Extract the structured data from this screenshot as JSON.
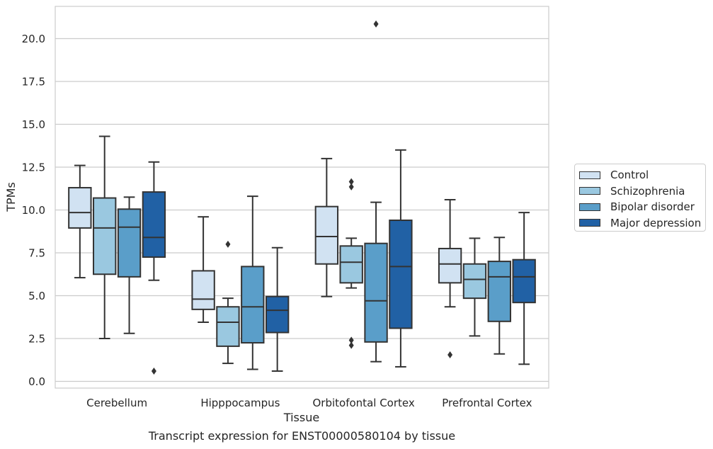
{
  "chart_data": {
    "type": "box",
    "xlabel": "Tissue",
    "ylabel": "TPMs",
    "ylim": [
      -0.4,
      21.8
    ],
    "yticks": [
      "0.0",
      "2.5",
      "5.0",
      "7.5",
      "10.0",
      "12.5",
      "15.0",
      "17.5",
      "20.0"
    ],
    "grid": "horizontal",
    "legend_position": "right",
    "categories": [
      "Cerebellum",
      "Hipppocampus",
      "Orbitofontal Cortex",
      "Prefrontal Cortex"
    ],
    "series": [
      {
        "name": "Control",
        "color": "#d1e2f2",
        "boxes": [
          {
            "whisker_low": 6.05,
            "q1": 8.95,
            "median": 9.85,
            "q3": 11.3,
            "whisker_high": 12.6,
            "outliers": []
          },
          {
            "whisker_low": 3.45,
            "q1": 4.2,
            "median": 4.8,
            "q3": 6.45,
            "whisker_high": 9.6,
            "outliers": []
          },
          {
            "whisker_low": 4.95,
            "q1": 6.85,
            "median": 8.45,
            "q3": 10.2,
            "whisker_high": 13.0,
            "outliers": []
          },
          {
            "whisker_low": 4.35,
            "q1": 5.75,
            "median": 6.85,
            "q3": 7.75,
            "whisker_high": 10.6,
            "outliers": [
              1.55
            ]
          }
        ]
      },
      {
        "name": "Schizophrenia",
        "color": "#9ac8e0",
        "boxes": [
          {
            "whisker_low": 2.5,
            "q1": 6.25,
            "median": 8.95,
            "q3": 10.7,
            "whisker_high": 14.3,
            "outliers": []
          },
          {
            "whisker_low": 1.05,
            "q1": 2.05,
            "median": 3.45,
            "q3": 4.35,
            "whisker_high": 4.85,
            "outliers": [
              8.0
            ]
          },
          {
            "whisker_low": 5.45,
            "q1": 5.75,
            "median": 6.95,
            "q3": 7.9,
            "whisker_high": 8.35,
            "outliers": [
              11.35,
              11.65,
              2.1,
              2.4
            ]
          },
          {
            "whisker_low": 2.65,
            "q1": 4.85,
            "median": 5.95,
            "q3": 6.85,
            "whisker_high": 8.35,
            "outliers": []
          }
        ]
      },
      {
        "name": "Bipolar disorder",
        "color": "#5a9ec9",
        "boxes": [
          {
            "whisker_low": 2.8,
            "q1": 6.1,
            "median": 9.0,
            "q3": 10.05,
            "whisker_high": 10.75,
            "outliers": []
          },
          {
            "whisker_low": 0.7,
            "q1": 2.25,
            "median": 4.35,
            "q3": 6.7,
            "whisker_high": 10.8,
            "outliers": []
          },
          {
            "whisker_low": 1.15,
            "q1": 2.3,
            "median": 4.7,
            "q3": 8.05,
            "whisker_high": 10.45,
            "outliers": [
              20.85
            ]
          },
          {
            "whisker_low": 1.6,
            "q1": 3.5,
            "median": 6.1,
            "q3": 7.0,
            "whisker_high": 8.4,
            "outliers": []
          }
        ]
      },
      {
        "name": "Major depression",
        "color": "#2161a5",
        "boxes": [
          {
            "whisker_low": 5.9,
            "q1": 7.25,
            "median": 8.4,
            "q3": 11.05,
            "whisker_high": 12.8,
            "outliers": [
              0.6
            ]
          },
          {
            "whisker_low": 0.6,
            "q1": 2.85,
            "median": 4.15,
            "q3": 4.95,
            "whisker_high": 7.8,
            "outliers": []
          },
          {
            "whisker_low": 0.85,
            "q1": 3.1,
            "median": 6.7,
            "q3": 9.4,
            "whisker_high": 13.5,
            "outliers": []
          },
          {
            "whisker_low": 1.0,
            "q1": 4.6,
            "median": 6.1,
            "q3": 7.1,
            "whisker_high": 9.85,
            "outliers": []
          }
        ]
      }
    ]
  },
  "caption": "Transcript expression for ENST00000580104 by tissue"
}
